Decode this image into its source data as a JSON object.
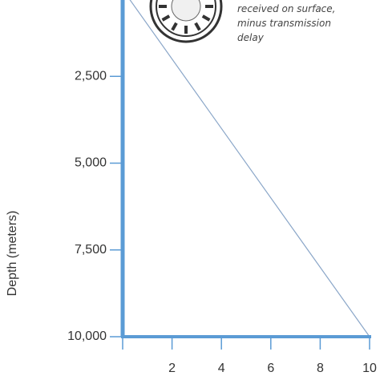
{
  "chart_data": {
    "type": "line",
    "title": "",
    "xlabel": "",
    "ylabel": "Depth (meters)",
    "y_axis": {
      "direction": "downward",
      "range": [
        0,
        10000
      ],
      "tick_values": [
        2500,
        5000,
        7500,
        10000
      ],
      "tick_labels": [
        "2,500",
        "5,000",
        "7,500",
        "10,000"
      ]
    },
    "x_axis": {
      "range": [
        0,
        10
      ],
      "tick_values": [
        2,
        4,
        6,
        8,
        10
      ],
      "tick_labels": [
        "2",
        "4",
        "6",
        "8",
        "10"
      ]
    },
    "series": [
      {
        "x": [
          0,
          10
        ],
        "y": [
          0,
          10000
        ]
      }
    ],
    "grid": false,
    "annotation": {
      "lines": [
        "received on surface,",
        "minus transmission",
        "delay"
      ],
      "icon": "clock-icon"
    },
    "colors": {
      "line": "#8aa6c8",
      "axis": "#5b9bd5",
      "text": "#333333"
    }
  }
}
